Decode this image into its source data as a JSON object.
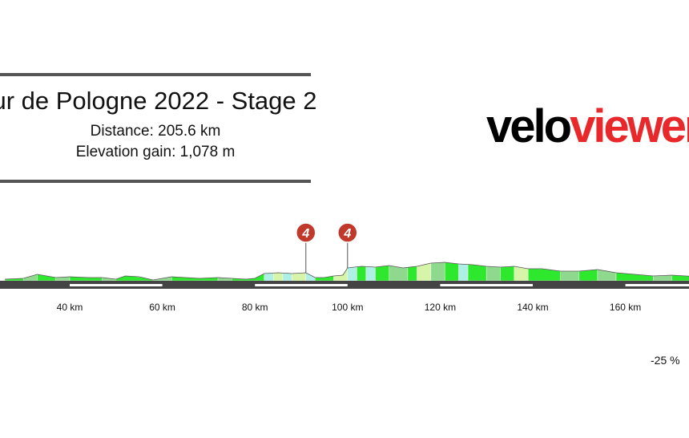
{
  "header": {
    "title": "ur de Pologne 2022 - Stage 2",
    "distance": "Distance: 205.6 km",
    "elevation_gain": "Elevation gain: 1,078 m"
  },
  "logo": {
    "part1": "velo",
    "part2": "viewer"
  },
  "gradient_scale_label": "-25 %",
  "colors": {
    "rule": "#555555",
    "logo_accent": "#e8282b",
    "road": "#444444",
    "km_marker": "#ffffff",
    "climb_badge": "#c0392b",
    "gradient_flat": "#2ee82e",
    "gradient_mild": "#8fd98f",
    "gradient_light": "#d6f5a8",
    "gradient_cyan": "#aef0e6"
  },
  "chart_data": {
    "type": "area",
    "title": "",
    "xlabel": "",
    "ylabel": "",
    "x_ticks": [
      "40 km",
      "60 km",
      "80 km",
      "100 km",
      "120 km",
      "140 km",
      "160 km"
    ],
    "x_tick_values": [
      40,
      60,
      80,
      100,
      120,
      140,
      160
    ],
    "xlim": [
      26,
      176
    ],
    "elevation_relative": {
      "km": [
        26,
        30,
        33,
        37,
        40,
        44,
        47,
        50,
        52,
        55,
        58,
        62,
        65,
        68,
        72,
        75,
        78,
        80,
        82,
        85,
        88,
        91,
        93,
        95,
        97,
        99,
        100,
        103,
        106,
        109,
        112,
        115,
        118,
        121,
        124,
        127,
        130,
        133,
        136,
        139,
        142,
        146,
        150,
        154,
        158,
        162,
        166,
        170,
        176
      ],
      "height": [
        2,
        3,
        8,
        4,
        5,
        4,
        4,
        2,
        6,
        5,
        1,
        5,
        4,
        3,
        4,
        3,
        2,
        3,
        9,
        10,
        9,
        10,
        4,
        4,
        6,
        7,
        16,
        18,
        17,
        19,
        16,
        18,
        22,
        23,
        21,
        20,
        18,
        17,
        18,
        15,
        15,
        12,
        12,
        14,
        10,
        8,
        6,
        7,
        5
      ]
    },
    "gradient_segments": [
      {
        "from": 26,
        "to": 30,
        "level": "flat"
      },
      {
        "from": 30,
        "to": 33,
        "level": "mild"
      },
      {
        "from": 33,
        "to": 37,
        "level": "flat"
      },
      {
        "from": 37,
        "to": 40,
        "level": "mild"
      },
      {
        "from": 40,
        "to": 47,
        "level": "flat"
      },
      {
        "from": 47,
        "to": 50,
        "level": "mild"
      },
      {
        "from": 50,
        "to": 58,
        "level": "flat"
      },
      {
        "from": 58,
        "to": 62,
        "level": "mild"
      },
      {
        "from": 62,
        "to": 72,
        "level": "flat"
      },
      {
        "from": 72,
        "to": 75,
        "level": "mild"
      },
      {
        "from": 75,
        "to": 82,
        "level": "flat"
      },
      {
        "from": 82,
        "to": 84,
        "level": "cyan"
      },
      {
        "from": 84,
        "to": 86,
        "level": "light"
      },
      {
        "from": 86,
        "to": 88,
        "level": "cyan"
      },
      {
        "from": 88,
        "to": 91,
        "level": "light"
      },
      {
        "from": 91,
        "to": 93,
        "level": "cyan"
      },
      {
        "from": 93,
        "to": 97,
        "level": "flat"
      },
      {
        "from": 97,
        "to": 100,
        "level": "light"
      },
      {
        "from": 100,
        "to": 102,
        "level": "cyan"
      },
      {
        "from": 102,
        "to": 104,
        "level": "flat"
      },
      {
        "from": 104,
        "to": 106,
        "level": "cyan"
      },
      {
        "from": 106,
        "to": 109,
        "level": "flat"
      },
      {
        "from": 109,
        "to": 113,
        "level": "mild"
      },
      {
        "from": 113,
        "to": 115,
        "level": "flat"
      },
      {
        "from": 115,
        "to": 118,
        "level": "light"
      },
      {
        "from": 118,
        "to": 121,
        "level": "mild"
      },
      {
        "from": 121,
        "to": 124,
        "level": "flat"
      },
      {
        "from": 124,
        "to": 126,
        "level": "cyan"
      },
      {
        "from": 126,
        "to": 130,
        "level": "flat"
      },
      {
        "from": 130,
        "to": 133,
        "level": "mild"
      },
      {
        "from": 133,
        "to": 136,
        "level": "flat"
      },
      {
        "from": 136,
        "to": 139,
        "level": "light"
      },
      {
        "from": 139,
        "to": 146,
        "level": "flat"
      },
      {
        "from": 146,
        "to": 150,
        "level": "mild"
      },
      {
        "from": 150,
        "to": 154,
        "level": "flat"
      },
      {
        "from": 154,
        "to": 158,
        "level": "mild"
      },
      {
        "from": 158,
        "to": 166,
        "level": "flat"
      },
      {
        "from": 166,
        "to": 170,
        "level": "mild"
      },
      {
        "from": 170,
        "to": 176,
        "level": "flat"
      }
    ],
    "climbs": [
      {
        "km": 91,
        "category": "4"
      },
      {
        "km": 100,
        "category": "4"
      }
    ],
    "km_marker_bands": [
      {
        "from": 40,
        "to": 60
      },
      {
        "from": 80,
        "to": 100
      },
      {
        "from": 120,
        "to": 140
      },
      {
        "from": 160,
        "to": 176
      }
    ]
  }
}
